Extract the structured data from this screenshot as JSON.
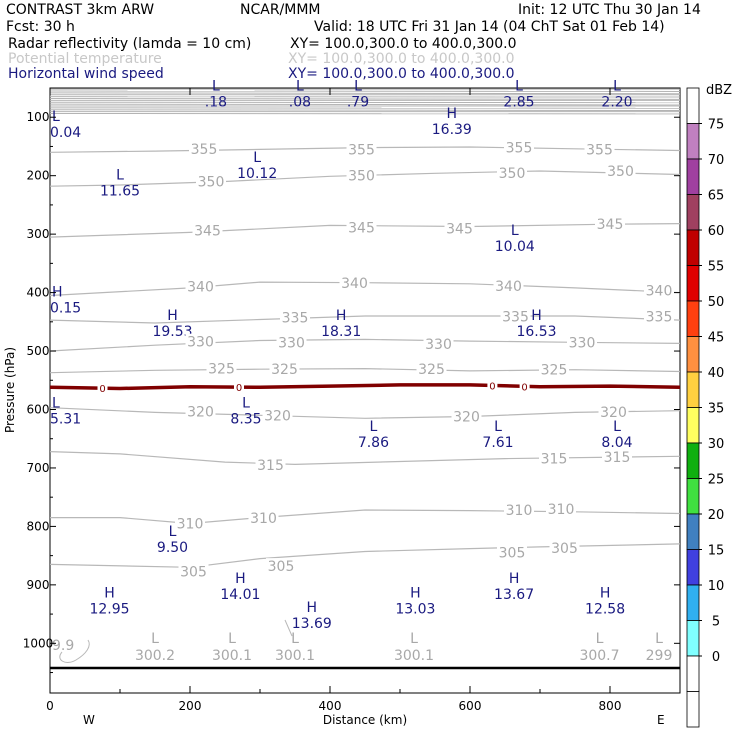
{
  "header": {
    "left1": "CONTRAST  3km ARW",
    "center1": "NCAR/MMM",
    "right1": "Init: 12 UTC Thu 30 Jan 14",
    "left2": "Fcst:   30 h",
    "right2": "Valid: 18 UTC Fri 31 Jan 14 (04 ChT Sat 01 Feb 14)",
    "fields": [
      {
        "name": "Radar reflectivity (lamda = 10 cm)",
        "xy": "XY= 100.0,300.0 to 400.0,300.0",
        "color": "#000000"
      },
      {
        "name": "Potential temperature",
        "xy": "XY= 100.0,300.0 to 400.0,300.0",
        "color": "#c8c8c8"
      },
      {
        "name": "Horizontal wind speed",
        "xy": "XY= 100.0,300.0 to 400.0,300.0",
        "color": "#1a1a80"
      }
    ]
  },
  "chart_data": {
    "type": "line",
    "xlabel": "Distance (km)",
    "ylabel": "Pressure (hPa)",
    "xlim": [
      0,
      900
    ],
    "ylim": [
      1085,
      50
    ],
    "x_ticks": [
      0,
      200,
      400,
      600,
      800
    ],
    "x_tick_labels": [
      "0",
      "200",
      "400",
      "600",
      "800"
    ],
    "y_ticks": [
      100,
      200,
      300,
      400,
      500,
      600,
      700,
      800,
      900,
      1000
    ],
    "y_tick_labels": [
      "100",
      "200",
      "300",
      "400",
      "500",
      "600",
      "700",
      "800",
      "900",
      "1000"
    ],
    "x_end_labels": {
      "left": "W",
      "right": "E"
    },
    "theta_contours": [
      {
        "label": "355",
        "points": [
          [
            0,
            160
          ],
          [
            150,
            158
          ],
          [
            300,
            155
          ],
          [
            450,
            152
          ],
          [
            600,
            151
          ],
          [
            750,
            154
          ],
          [
            900,
            157
          ]
        ],
        "label_at": [
          [
            220,
            154
          ],
          [
            445,
            155
          ],
          [
            670,
            152
          ],
          [
            785,
            155
          ]
        ]
      },
      {
        "label": "350",
        "points": [
          [
            0,
            218
          ],
          [
            100,
            216
          ],
          [
            250,
            210
          ],
          [
            400,
            201
          ],
          [
            550,
            196
          ],
          [
            700,
            192
          ],
          [
            900,
            198
          ]
        ],
        "label_at": [
          [
            230,
            210
          ],
          [
            445,
            200
          ],
          [
            660,
            195
          ],
          [
            815,
            192
          ]
        ]
      },
      {
        "label": "345",
        "points": [
          [
            0,
            305
          ],
          [
            200,
            297
          ],
          [
            400,
            285
          ],
          [
            600,
            287
          ],
          [
            800,
            283
          ],
          [
            900,
            282
          ]
        ],
        "label_at": [
          [
            225,
            294
          ],
          [
            445,
            289
          ],
          [
            585,
            290
          ],
          [
            800,
            283
          ]
        ]
      },
      {
        "label": "340",
        "points": [
          [
            0,
            405
          ],
          [
            200,
            392
          ],
          [
            300,
            382
          ],
          [
            450,
            383
          ],
          [
            600,
            385
          ],
          [
            750,
            392
          ],
          [
            900,
            400
          ]
        ],
        "label_at": [
          [
            215,
            390
          ],
          [
            435,
            384
          ],
          [
            655,
            389
          ],
          [
            870,
            396
          ]
        ]
      },
      {
        "label": "335",
        "points": [
          [
            0,
            447
          ],
          [
            150,
            452
          ],
          [
            300,
            446
          ],
          [
            450,
            440
          ],
          [
            600,
            440
          ],
          [
            750,
            440
          ],
          [
            900,
            447
          ]
        ],
        "label_at": [
          [
            350,
            443
          ],
          [
            665,
            441
          ],
          [
            870,
            441
          ]
        ]
      },
      {
        "label": "330",
        "points": [
          [
            0,
            500
          ],
          [
            150,
            490
          ],
          [
            300,
            482
          ],
          [
            450,
            480
          ],
          [
            600,
            483
          ],
          [
            750,
            485
          ],
          [
            900,
            487
          ]
        ],
        "label_at": [
          [
            215,
            484
          ],
          [
            345,
            485
          ],
          [
            555,
            488
          ],
          [
            760,
            485
          ]
        ]
      },
      {
        "label": "325",
        "points": [
          [
            0,
            537
          ],
          [
            150,
            533
          ],
          [
            300,
            531
          ],
          [
            450,
            530
          ],
          [
            600,
            534
          ],
          [
            750,
            532
          ],
          [
            900,
            535
          ]
        ],
        "label_at": [
          [
            245,
            530
          ],
          [
            335,
            531
          ],
          [
            545,
            531
          ],
          [
            720,
            532
          ]
        ]
      },
      {
        "label": "320",
        "points": [
          [
            0,
            597
          ],
          [
            150,
            605
          ],
          [
            300,
            610
          ],
          [
            450,
            615
          ],
          [
            600,
            612
          ],
          [
            750,
            605
          ],
          [
            900,
            602
          ]
        ],
        "label_at": [
          [
            215,
            603
          ],
          [
            325,
            610
          ],
          [
            595,
            612
          ],
          [
            805,
            604
          ]
        ]
      },
      {
        "label": "315",
        "points": [
          [
            0,
            672
          ],
          [
            100,
            676
          ],
          [
            250,
            690
          ],
          [
            350,
            694
          ],
          [
            500,
            689
          ],
          [
            650,
            684
          ],
          [
            900,
            680
          ]
        ],
        "label_at": [
          [
            315,
            695
          ],
          [
            720,
            684
          ],
          [
            810,
            681
          ]
        ]
      },
      {
        "label": "310",
        "points": [
          [
            0,
            785
          ],
          [
            100,
            785
          ],
          [
            200,
            795
          ],
          [
            300,
            785
          ],
          [
            450,
            772
          ],
          [
            600,
            773
          ],
          [
            750,
            775
          ],
          [
            900,
            778
          ]
        ],
        "label_at": [
          [
            200,
            795
          ],
          [
            305,
            786
          ],
          [
            670,
            772
          ],
          [
            730,
            770
          ]
        ]
      },
      {
        "label": "305",
        "points": [
          [
            0,
            865
          ],
          [
            200,
            870
          ],
          [
            300,
            855
          ],
          [
            450,
            843
          ],
          [
            600,
            838
          ],
          [
            700,
            835
          ],
          [
            900,
            830
          ]
        ],
        "label_at": [
          [
            205,
            877
          ],
          [
            330,
            868
          ],
          [
            660,
            845
          ],
          [
            735,
            837
          ]
        ]
      }
    ],
    "theta_low_labels": [
      {
        "label": "300.2",
        "x": 150
      },
      {
        "label": "300.1",
        "x": 260
      },
      {
        "label": "300.1",
        "x": 350
      },
      {
        "label": "300.1",
        "x": 520
      },
      {
        "label": "300.7",
        "x": 785
      },
      {
        "label": "299",
        "x": 870
      }
    ],
    "edge_label_left": "9.9",
    "zero_contour": {
      "label": "0",
      "points": [
        [
          0,
          562
        ],
        [
          100,
          564
        ],
        [
          200,
          561
        ],
        [
          300,
          562
        ],
        [
          400,
          560
        ],
        [
          500,
          558
        ],
        [
          600,
          558
        ],
        [
          700,
          561
        ],
        [
          800,
          560
        ],
        [
          900,
          562
        ]
      ],
      "label_at": [
        75,
        270,
        632,
        678
      ]
    },
    "wind_extrema": [
      {
        "type": "L",
        "value": ".18",
        "x": 237,
        "p": 58
      },
      {
        "type": "L",
        "value": ".08",
        "x": 357,
        "p": 58
      },
      {
        "type": "L",
        "value": ".79",
        "x": 440,
        "p": 58
      },
      {
        "type": "L",
        "value": "2.85",
        "x": 670,
        "p": 58
      },
      {
        "type": "L",
        "value": "2.20",
        "x": 810,
        "p": 58
      },
      {
        "type": "L",
        "value": "0.04",
        "x": 5,
        "p": 110
      },
      {
        "type": "H",
        "value": "16.39",
        "x": 574,
        "p": 105
      },
      {
        "type": "L",
        "value": "10.12",
        "x": 296,
        "p": 180
      },
      {
        "type": "L",
        "value": "11.65",
        "x": 100,
        "p": 210
      },
      {
        "type": "L",
        "value": "10.04",
        "x": 664,
        "p": 305
      },
      {
        "type": "H",
        "value": "0.15",
        "x": 5,
        "p": 410
      },
      {
        "type": "H",
        "value": "19.53",
        "x": 175,
        "p": 450
      },
      {
        "type": "H",
        "value": "18.31",
        "x": 416,
        "p": 450
      },
      {
        "type": "H",
        "value": "16.53",
        "x": 695,
        "p": 450
      },
      {
        "type": "L",
        "value": "5.31",
        "x": 5,
        "p": 600
      },
      {
        "type": "L",
        "value": "8.35",
        "x": 280,
        "p": 600
      },
      {
        "type": "L",
        "value": "7.86",
        "x": 462,
        "p": 640
      },
      {
        "type": "L",
        "value": "7.61",
        "x": 640,
        "p": 640
      },
      {
        "type": "L",
        "value": "8.04",
        "x": 810,
        "p": 640
      },
      {
        "type": "L",
        "value": "9.50",
        "x": 175,
        "p": 820
      },
      {
        "type": "H",
        "value": "14.01",
        "x": 272,
        "p": 900
      },
      {
        "type": "H",
        "value": "13.67",
        "x": 663,
        "p": 900
      },
      {
        "type": "H",
        "value": "12.95",
        "x": 85,
        "p": 925
      },
      {
        "type": "H",
        "value": "13.03",
        "x": 522,
        "p": 925
      },
      {
        "type": "H",
        "value": "12.58",
        "x": 793,
        "p": 925
      },
      {
        "type": "H",
        "value": "13.69",
        "x": 374,
        "p": 950
      }
    ],
    "colorbar": {
      "unit": "dBZ",
      "levels": [
        "75",
        "70",
        "65",
        "60",
        "55",
        "50",
        "45",
        "40",
        "35",
        "30",
        "25",
        "20",
        "15",
        "10",
        "5",
        "0"
      ],
      "colors": [
        "#ffffff",
        "#c080c0",
        "#a040a0",
        "#a04060",
        "#c00000",
        "#e00000",
        "#ff4010",
        "#ff9040",
        "#ffd040",
        "#ffff60",
        "#10b010",
        "#40e040",
        "#4080c0",
        "#4040e0",
        "#30b0f0",
        "#80ffff",
        "#ffffff",
        "#ffffff"
      ]
    }
  }
}
